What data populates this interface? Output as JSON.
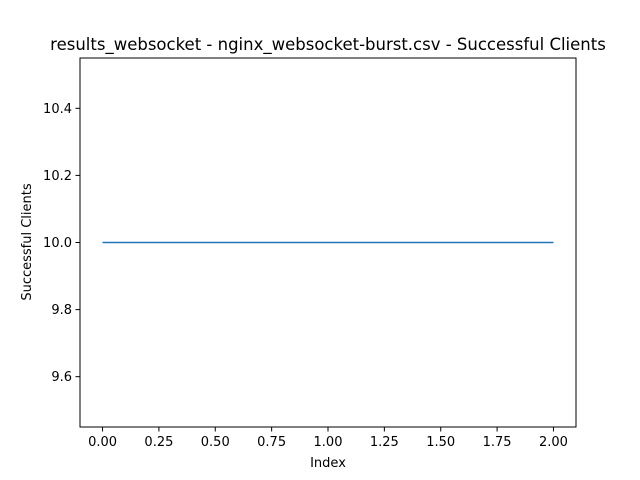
{
  "chart_data": {
    "type": "line",
    "title": "results_websocket - nginx_websocket-burst.csv - Successful Clients",
    "xlabel": "Index",
    "ylabel": "Successful Clients",
    "x": [
      0,
      1,
      2
    ],
    "series": [
      {
        "values": [
          10,
          10,
          10
        ],
        "color": "#1f77b4"
      }
    ],
    "xlim": [
      -0.1,
      2.1
    ],
    "ylim": [
      9.45,
      10.55
    ],
    "xticks": [
      0.0,
      0.25,
      0.5,
      0.75,
      1.0,
      1.25,
      1.5,
      1.75,
      2.0
    ],
    "xtick_labels": [
      "0.00",
      "0.25",
      "0.50",
      "0.75",
      "1.00",
      "1.25",
      "1.50",
      "1.75",
      "2.00"
    ],
    "yticks": [
      9.6,
      9.8,
      10.0,
      10.2,
      10.4
    ],
    "ytick_labels": [
      "9.6",
      "9.8",
      "10.0",
      "10.2",
      "10.4"
    ],
    "grid": false
  }
}
